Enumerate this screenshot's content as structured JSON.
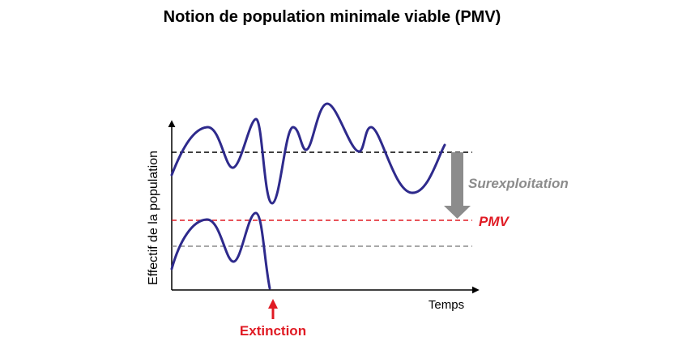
{
  "title": "Notion de population minimale viable (PMV)",
  "axes": {
    "y_label": "Effectif de la population",
    "x_label": "Temps"
  },
  "labels": {
    "overexploitation": "Surexploitation",
    "mvp": "PMV",
    "extinction": "Extinction"
  },
  "colors": {
    "curve": "#2e2a8c",
    "mvp": "#e01b24",
    "overexploitation": "#8c8c8c",
    "axis": "#000000"
  }
}
